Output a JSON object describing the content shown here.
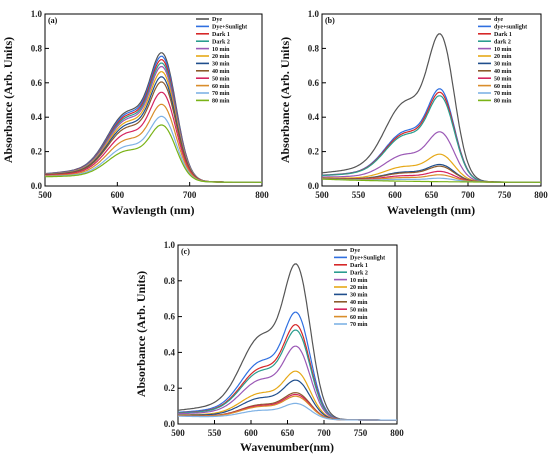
{
  "colors": [
    "#555555",
    "#2f6fe0",
    "#d62728",
    "#2a9d8f",
    "#9b59b6",
    "#e6a817",
    "#1f4e8c",
    "#8b5a2b",
    "#d5245f",
    "#d98d2b",
    "#7fb2e5",
    "#7ab317",
    "#9b9b9b"
  ],
  "chart_data": [
    {
      "type": "line",
      "panel_label": "(a)",
      "xlabel": "Wavlength (nm)",
      "ylabel": "Absorbance (Arb. Units)",
      "xlim": [
        500,
        800
      ],
      "ylim": [
        0,
        1.0
      ],
      "xticks": [
        500,
        600,
        700,
        800
      ],
      "yticks": [
        0.0,
        0.2,
        0.4,
        0.6,
        0.8,
        1.0
      ],
      "legend_position": "top-right",
      "grid": false,
      "series": [
        {
          "name": "Dye",
          "peak": 0.78
        },
        {
          "name": "Dye+Sunlight",
          "peak": 0.76
        },
        {
          "name": "Dark 1",
          "peak": 0.74
        },
        {
          "name": "Dark 2",
          "peak": 0.72
        },
        {
          "name": "10 min",
          "peak": 0.7
        },
        {
          "name": "20 min",
          "peak": 0.67
        },
        {
          "name": "30 min",
          "peak": 0.64
        },
        {
          "name": "40 min",
          "peak": 0.61
        },
        {
          "name": "50 min",
          "peak": 0.55
        },
        {
          "name": "60 min",
          "peak": 0.48
        },
        {
          "name": "70 min",
          "peak": 0.41
        },
        {
          "name": "80 min",
          "peak": 0.36
        }
      ]
    },
    {
      "type": "line",
      "panel_label": "(b)",
      "xlabel": "Wavelength (nm)",
      "ylabel": "Absorbance (Arb. Units)",
      "xlim": [
        500,
        800
      ],
      "ylim": [
        0,
        1.0
      ],
      "xticks": [
        500,
        550,
        600,
        650,
        700,
        750,
        800
      ],
      "yticks": [
        0.0,
        0.2,
        0.4,
        0.6,
        0.8,
        1.0
      ],
      "legend_position": "top-right",
      "grid": false,
      "series": [
        {
          "name": "dye",
          "peak": 0.89
        },
        {
          "name": "dye+sunlight",
          "peak": 0.57
        },
        {
          "name": "Dark 1",
          "peak": 0.55
        },
        {
          "name": "dark 2",
          "peak": 0.53
        },
        {
          "name": "10 min",
          "peak": 0.32
        },
        {
          "name": "20 min",
          "peak": 0.19
        },
        {
          "name": "30 min",
          "peak": 0.13
        },
        {
          "name": "40 min",
          "peak": 0.12
        },
        {
          "name": "50 min",
          "peak": 0.09
        },
        {
          "name": "60 min",
          "peak": 0.07
        },
        {
          "name": "70 min",
          "peak": 0.05
        },
        {
          "name": "80 min",
          "peak": 0.03
        }
      ]
    },
    {
      "type": "line",
      "panel_label": "(c)",
      "xlabel": "Wavenumber(nm)",
      "ylabel": "Absorbance (Arb. Units)",
      "xlim": [
        500,
        800
      ],
      "ylim": [
        0,
        1.0
      ],
      "xticks": [
        500,
        550,
        600,
        650,
        700,
        750,
        800
      ],
      "yticks": [
        0.0,
        0.2,
        0.4,
        0.6,
        0.8,
        1.0
      ],
      "legend_position": "top-right",
      "grid": false,
      "series": [
        {
          "name": "Dye",
          "peak": 0.9
        },
        {
          "name": "Dye+Sunlight",
          "peak": 0.63
        },
        {
          "name": "Dark 1",
          "peak": 0.56
        },
        {
          "name": "Dark 2",
          "peak": 0.53
        },
        {
          "name": "10 min",
          "peak": 0.44
        },
        {
          "name": "20 min",
          "peak": 0.3
        },
        {
          "name": "30 min",
          "peak": 0.25
        },
        {
          "name": "40 min",
          "peak": 0.18
        },
        {
          "name": "50 min",
          "peak": 0.17
        },
        {
          "name": "60 min",
          "peak": 0.16
        },
        {
          "name": "70 min",
          "peak": 0.12
        }
      ]
    }
  ]
}
